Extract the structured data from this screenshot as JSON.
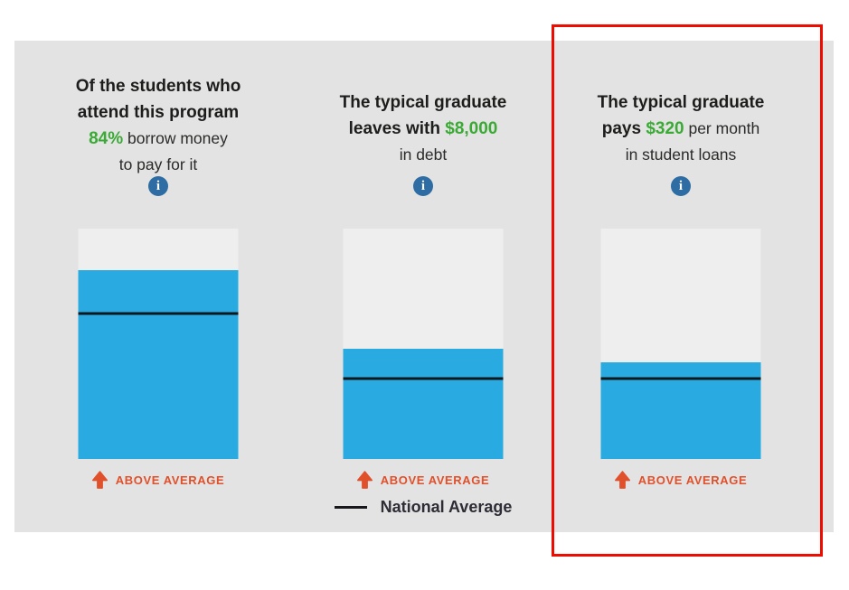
{
  "colors": {
    "panel_bg": "#e3e3e3",
    "bar_track": "#eeeeee",
    "bar_fill_blue": "#29abe2",
    "national_average_line": "#12161d",
    "value_green": "#3aaa35",
    "above_average_orange": "#e0502b",
    "info_icon_blue": "#2d6da3",
    "highlight_box_red": "#ee0b00",
    "heading_text": "#1d1d1b"
  },
  "icons": {
    "info": "i",
    "up_arrow": "↑"
  },
  "columns": [
    {
      "heading_lines": [
        {
          "segments": [
            {
              "text": "Of the students who"
            }
          ]
        },
        {
          "segments": [
            {
              "text": "attend this program"
            }
          ]
        },
        {
          "segments": [
            {
              "text": "84%"
            },
            {
              "text": " borrow money"
            }
          ]
        },
        {
          "segments": [
            {
              "text": "to pay for it"
            }
          ]
        }
      ],
      "status": "ABOVE AVERAGE"
    },
    {
      "heading_lines": [
        {
          "segments": [
            {
              "text": "The typical graduate"
            }
          ]
        },
        {
          "segments": [
            {
              "text": "leaves with "
            },
            {
              "text": "$8,000"
            }
          ]
        },
        {
          "segments": [
            {
              "text": "in debt"
            }
          ]
        }
      ],
      "status": "ABOVE AVERAGE"
    },
    {
      "heading_lines": [
        {
          "segments": [
            {
              "text": "The typical graduate"
            }
          ]
        },
        {
          "segments": [
            {
              "text": "pays "
            },
            {
              "text": "$320"
            },
            {
              "text": " per month"
            }
          ]
        },
        {
          "segments": [
            {
              "text": "in student loans"
            }
          ]
        }
      ],
      "status": "ABOVE AVERAGE"
    }
  ],
  "legend": {
    "label": "National Average"
  },
  "chart_data": {
    "type": "bar",
    "title": "Program student borrowing compared to national average",
    "legend_entries": [
      "National Average"
    ],
    "bar_color": "#29abe2",
    "average_line_color": "#12161d",
    "panels": [
      {
        "metric": "Share of students who borrow money to pay for this program",
        "value_label": "84%",
        "bar_fill_percent": 82,
        "national_average_percent": 63,
        "comparison": "ABOVE AVERAGE"
      },
      {
        "metric": "Typical graduate debt at graduation",
        "value_label": "$8,000",
        "bar_fill_percent": 48,
        "national_average_percent": 35,
        "comparison": "ABOVE AVERAGE"
      },
      {
        "metric": "Typical graduate monthly student loan payment",
        "value_label": "$320",
        "bar_fill_percent": 42,
        "national_average_percent": 35,
        "comparison": "ABOVE AVERAGE"
      }
    ]
  }
}
